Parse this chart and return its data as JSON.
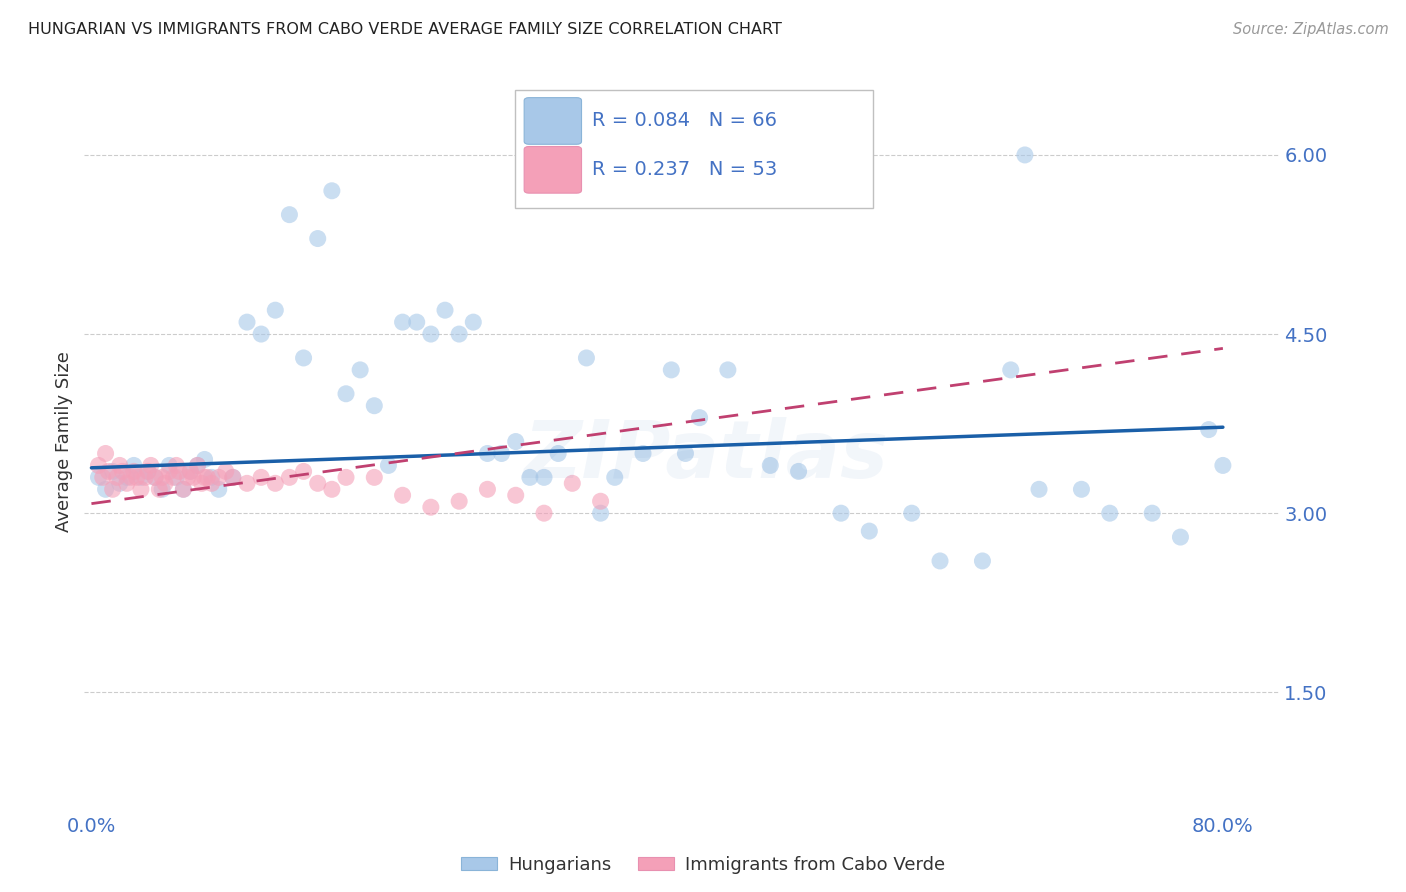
{
  "title": "HUNGARIAN VS IMMIGRANTS FROM CABO VERDE AVERAGE FAMILY SIZE CORRELATION CHART",
  "source": "Source: ZipAtlas.com",
  "ylabel": "Average Family Size",
  "legend_label1": "Hungarians",
  "legend_label2": "Immigrants from Cabo Verde",
  "R1": 0.084,
  "N1": 66,
  "R2": 0.237,
  "N2": 53,
  "blue_color": "#a8c8e8",
  "pink_color": "#f4a0b8",
  "line_blue": "#1a5fa8",
  "line_pink": "#c04070",
  "title_color": "#222222",
  "axis_color": "#4472c4",
  "source_color": "#999999",
  "bg_color": "#ffffff",
  "grid_color": "#cccccc",
  "ylim": [
    0.5,
    6.7
  ],
  "xlim": [
    -0.005,
    0.84
  ],
  "ytick_vals": [
    1.5,
    3.0,
    4.5,
    6.0
  ],
  "ytick_labels": [
    "1.50",
    "3.00",
    "4.50",
    "6.00"
  ],
  "xtick_positions": [
    0.0,
    0.1,
    0.2,
    0.3,
    0.4,
    0.5,
    0.6,
    0.7,
    0.8
  ],
  "watermark": "ZIPatlas",
  "blue_line_x": [
    0.0,
    0.8
  ],
  "blue_line_y": [
    3.38,
    3.72
  ],
  "pink_line_x": [
    0.0,
    0.8
  ],
  "pink_line_y": [
    3.08,
    4.38
  ],
  "blue_x": [
    0.005,
    0.01,
    0.015,
    0.02,
    0.025,
    0.03,
    0.035,
    0.04,
    0.045,
    0.05,
    0.055,
    0.06,
    0.065,
    0.07,
    0.075,
    0.08,
    0.085,
    0.09,
    0.1,
    0.11,
    0.12,
    0.13,
    0.14,
    0.15,
    0.16,
    0.17,
    0.18,
    0.19,
    0.2,
    0.21,
    0.22,
    0.23,
    0.24,
    0.25,
    0.26,
    0.27,
    0.28,
    0.29,
    0.3,
    0.31,
    0.32,
    0.33,
    0.35,
    0.37,
    0.39,
    0.41,
    0.43,
    0.45,
    0.48,
    0.5,
    0.53,
    0.55,
    0.58,
    0.6,
    0.63,
    0.65,
    0.67,
    0.7,
    0.72,
    0.75,
    0.77,
    0.79,
    0.8,
    0.66,
    0.42,
    0.36
  ],
  "blue_y": [
    3.3,
    3.2,
    3.35,
    3.25,
    3.3,
    3.4,
    3.3,
    3.35,
    3.3,
    3.2,
    3.4,
    3.3,
    3.2,
    3.35,
    3.4,
    3.45,
    3.3,
    3.2,
    3.3,
    4.6,
    4.5,
    4.7,
    5.5,
    4.3,
    5.3,
    5.7,
    4.0,
    4.2,
    3.9,
    3.4,
    4.6,
    4.6,
    4.5,
    4.7,
    4.5,
    4.6,
    3.5,
    3.5,
    3.6,
    3.3,
    3.3,
    3.5,
    4.3,
    3.3,
    3.5,
    4.2,
    3.8,
    4.2,
    3.4,
    3.35,
    3.0,
    2.85,
    3.0,
    2.6,
    2.6,
    4.2,
    3.2,
    3.2,
    3.0,
    3.0,
    2.8,
    3.7,
    3.4,
    6.0,
    3.5,
    3.0
  ],
  "pink_x": [
    0.005,
    0.008,
    0.01,
    0.012,
    0.015,
    0.018,
    0.02,
    0.022,
    0.025,
    0.028,
    0.03,
    0.032,
    0.035,
    0.038,
    0.04,
    0.042,
    0.045,
    0.048,
    0.05,
    0.052,
    0.055,
    0.058,
    0.06,
    0.062,
    0.065,
    0.068,
    0.07,
    0.072,
    0.075,
    0.078,
    0.08,
    0.082,
    0.085,
    0.09,
    0.095,
    0.1,
    0.11,
    0.12,
    0.13,
    0.14,
    0.15,
    0.16,
    0.17,
    0.18,
    0.2,
    0.22,
    0.24,
    0.26,
    0.28,
    0.3,
    0.32,
    0.34,
    0.36
  ],
  "pink_y": [
    3.4,
    3.3,
    3.5,
    3.35,
    3.2,
    3.3,
    3.4,
    3.35,
    3.25,
    3.3,
    3.35,
    3.3,
    3.2,
    3.3,
    3.35,
    3.4,
    3.3,
    3.2,
    3.3,
    3.25,
    3.35,
    3.3,
    3.4,
    3.35,
    3.2,
    3.3,
    3.35,
    3.3,
    3.4,
    3.25,
    3.3,
    3.3,
    3.25,
    3.3,
    3.35,
    3.3,
    3.25,
    3.3,
    3.25,
    3.3,
    3.35,
    3.25,
    3.2,
    3.3,
    3.3,
    3.15,
    3.05,
    3.1,
    3.2,
    3.15,
    3.0,
    3.25,
    3.1
  ]
}
